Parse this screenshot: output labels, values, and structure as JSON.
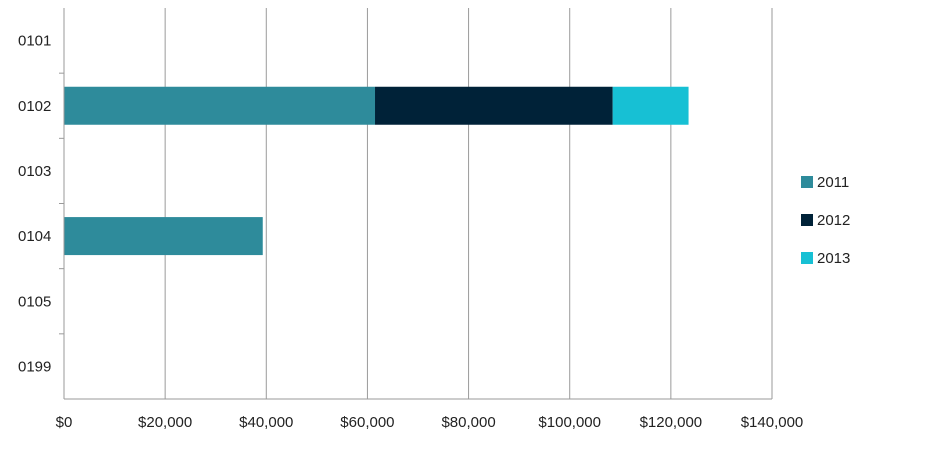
{
  "chart_data": {
    "type": "bar",
    "orientation": "horizontal",
    "stacked": true,
    "categories": [
      "0101",
      "0102",
      "0103",
      "0104",
      "0105",
      "0199"
    ],
    "series": [
      {
        "name": "2011",
        "color": "#2e8b9b",
        "values": [
          0,
          61500,
          0,
          39300,
          0,
          0
        ]
      },
      {
        "name": "2012",
        "color": "#002238",
        "values": [
          0,
          47000,
          0,
          0,
          0,
          0
        ]
      },
      {
        "name": "2013",
        "color": "#17c0d4",
        "values": [
          0,
          15000,
          0,
          0,
          0,
          0
        ]
      }
    ],
    "xlim": [
      0,
      140000
    ],
    "x_ticks": [
      0,
      20000,
      40000,
      60000,
      80000,
      100000,
      120000,
      140000
    ],
    "x_tick_labels": [
      "$0",
      "$20,000",
      "$40,000",
      "$60,000",
      "$80,000",
      "$100,000",
      "$120,000",
      "$140,000"
    ],
    "grid": "vertical",
    "legend_position": "right"
  }
}
